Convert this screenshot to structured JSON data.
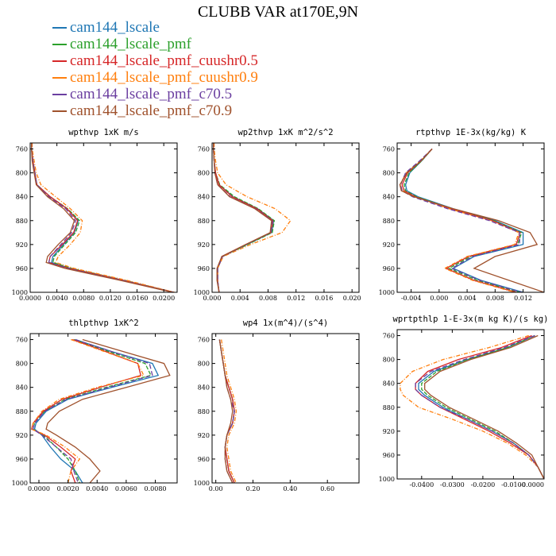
{
  "title": "CLUBB VAR at170E,9N",
  "colors": {
    "cam144_lscale": "#1f77b4",
    "cam144_lscale_pmf": "#2ca02c",
    "cam144_lscale_pmf_cuushr0.5": "#d62728",
    "cam144_lscale_pmf_cuushr0.9": "#ff7f0e",
    "cam144_lscale_pmf_c70.5": "#6b3fa0",
    "cam144_lscale_pmf_c70.9": "#a0522d"
  },
  "legend": [
    "cam144_lscale",
    "cam144_lscale_pmf",
    "cam144_lscale_pmf_cuushr0.5",
    "cam144_lscale_pmf_cuushr0.9",
    "cam144_lscale_pmf_c70.5",
    "cam144_lscale_pmf_c70.9"
  ],
  "chart_data": [
    {
      "type": "line",
      "title": "wpthvp  1xK m/s",
      "xlim": [
        0,
        0.022
      ],
      "ylim": [
        750,
        1000
      ],
      "xticks": [
        "0.0000",
        "0.0040",
        "0.0080",
        "0.0120",
        "0.0160",
        "0.0200"
      ],
      "xtick_values": [
        0,
        0.004,
        0.008,
        0.012,
        0.016,
        0.02
      ],
      "yticks": [
        "760",
        "800",
        "840",
        "880",
        "920",
        "960",
        "1000"
      ],
      "ytick_values": [
        760,
        800,
        840,
        880,
        920,
        960,
        1000
      ],
      "y": [
        750,
        760,
        780,
        800,
        820,
        840,
        860,
        880,
        900,
        920,
        940,
        950,
        960,
        980,
        1000
      ],
      "series": [
        {
          "name": "cam144_lscale",
          "values": [
            0.0002,
            0.0002,
            0.0004,
            0.0007,
            0.001,
            0.003,
            0.0055,
            0.0072,
            0.0066,
            0.005,
            0.0034,
            0.0032,
            0.006,
            0.014,
            0.0215
          ]
        },
        {
          "name": "cam144_lscale_pmf",
          "values": [
            0.0002,
            0.0002,
            0.0004,
            0.0007,
            0.001,
            0.003,
            0.0056,
            0.0074,
            0.0068,
            0.0052,
            0.0036,
            0.0034,
            0.0062,
            0.0142,
            0.0215
          ]
        },
        {
          "name": "cam144_lscale_pmf_cuushr0.5",
          "values": [
            0.0002,
            0.0002,
            0.0004,
            0.0007,
            0.001,
            0.003,
            0.0055,
            0.0071,
            0.0065,
            0.0048,
            0.003,
            0.0028,
            0.0058,
            0.014,
            0.0215
          ]
        },
        {
          "name": "cam144_lscale_pmf_cuushr0.9",
          "values": [
            0.0003,
            0.0003,
            0.0006,
            0.0009,
            0.0016,
            0.0038,
            0.006,
            0.0078,
            0.0075,
            0.006,
            0.0042,
            0.0038,
            0.0066,
            0.0145,
            0.0216
          ]
        },
        {
          "name": "cam144_lscale_pmf_c70.5",
          "values": [
            0.0002,
            0.0002,
            0.0004,
            0.0007,
            0.001,
            0.0028,
            0.0053,
            0.0068,
            0.0062,
            0.0046,
            0.003,
            0.0028,
            0.0056,
            0.0138,
            0.0214
          ]
        },
        {
          "name": "cam144_lscale_pmf_c70.9",
          "values": [
            0.0002,
            0.0002,
            0.0003,
            0.0006,
            0.0009,
            0.0026,
            0.005,
            0.0066,
            0.006,
            0.0042,
            0.0026,
            0.0024,
            0.0052,
            0.0135,
            0.0213
          ]
        }
      ]
    },
    {
      "type": "line",
      "title": "wp2thvp  1xK m^2/s^2",
      "xlim": [
        0,
        0.021
      ],
      "ylim": [
        750,
        1000
      ],
      "xticks": [
        "0.000",
        "0.004",
        "0.008",
        "0.012",
        "0.016",
        "0.020"
      ],
      "xtick_values": [
        0,
        0.004,
        0.008,
        0.012,
        0.016,
        0.02
      ],
      "yticks": [
        "760",
        "800",
        "840",
        "880",
        "920",
        "960",
        "1000"
      ],
      "ytick_values": [
        760,
        800,
        840,
        880,
        920,
        960,
        1000
      ],
      "y": [
        750,
        760,
        780,
        800,
        820,
        840,
        860,
        880,
        900,
        920,
        940,
        960,
        980,
        1000
      ],
      "series": [
        {
          "name": "cam144_lscale",
          "values": [
            0.0002,
            0.0002,
            0.0003,
            0.0005,
            0.001,
            0.003,
            0.0065,
            0.0088,
            0.0085,
            0.005,
            0.0015,
            0.0008,
            0.0008,
            0.001
          ]
        },
        {
          "name": "cam144_lscale_pmf",
          "values": [
            0.0002,
            0.0002,
            0.0003,
            0.0005,
            0.0011,
            0.0032,
            0.0066,
            0.0089,
            0.0086,
            0.0051,
            0.0015,
            0.0008,
            0.0008,
            0.001
          ]
        },
        {
          "name": "cam144_lscale_pmf_cuushr0.5",
          "values": [
            0.0002,
            0.0002,
            0.0003,
            0.0005,
            0.001,
            0.0029,
            0.0064,
            0.0087,
            0.0084,
            0.0048,
            0.0014,
            0.0008,
            0.0008,
            0.001
          ]
        },
        {
          "name": "cam144_lscale_pmf_cuushr0.9",
          "values": [
            0.0003,
            0.0003,
            0.0005,
            0.0008,
            0.002,
            0.005,
            0.009,
            0.0112,
            0.01,
            0.0055,
            0.0016,
            0.0008,
            0.0008,
            0.001
          ]
        },
        {
          "name": "cam144_lscale_pmf_c70.5",
          "values": [
            0.0002,
            0.0002,
            0.0003,
            0.0004,
            0.0008,
            0.0026,
            0.0062,
            0.0086,
            0.0084,
            0.0049,
            0.0015,
            0.0008,
            0.0008,
            0.001
          ]
        },
        {
          "name": "cam144_lscale_pmf_c70.9",
          "values": [
            0.0002,
            0.0002,
            0.0003,
            0.0004,
            0.0008,
            0.0025,
            0.0061,
            0.0085,
            0.0083,
            0.0048,
            0.0014,
            0.0007,
            0.0007,
            0.001
          ]
        }
      ]
    },
    {
      "type": "line",
      "title": "rtpthvp  1E-3x(kg/kg) K",
      "xlim": [
        -0.006,
        0.015
      ],
      "ylim": [
        750,
        1000
      ],
      "xticks": [
        "-0.004",
        "0.000",
        "0.004",
        "0.008",
        "0.012"
      ],
      "xtick_values": [
        -0.004,
        0.0,
        0.004,
        0.008,
        0.012
      ],
      "yticks": [
        "760",
        "800",
        "840",
        "880",
        "920",
        "960",
        "1000"
      ],
      "ytick_values": [
        760,
        800,
        840,
        880,
        920,
        960,
        1000
      ],
      "y": [
        760,
        780,
        800,
        820,
        830,
        840,
        860,
        880,
        900,
        920,
        940,
        960,
        980,
        1000
      ],
      "series": [
        {
          "name": "cam144_lscale",
          "values": [
            -0.001,
            -0.0025,
            -0.0042,
            -0.0048,
            -0.0046,
            -0.003,
            0.002,
            0.008,
            0.012,
            0.012,
            0.005,
            0.002,
            0.006,
            0.012
          ]
        },
        {
          "name": "cam144_lscale_pmf",
          "values": [
            -0.001,
            -0.0025,
            -0.0043,
            -0.005,
            -0.0048,
            -0.0032,
            0.0018,
            0.0078,
            0.0118,
            0.0112,
            0.0045,
            0.0014,
            0.0055,
            0.0115
          ]
        },
        {
          "name": "cam144_lscale_pmf_cuushr0.5",
          "values": [
            -0.001,
            -0.0026,
            -0.0045,
            -0.0053,
            -0.005,
            -0.0034,
            0.0016,
            0.0076,
            0.0116,
            0.011,
            0.0042,
            0.001,
            0.005,
            0.011
          ]
        },
        {
          "name": "cam144_lscale_pmf_cuushr0.9",
          "values": [
            -0.001,
            -0.0027,
            -0.0047,
            -0.0056,
            -0.0052,
            -0.0036,
            0.0014,
            0.0074,
            0.0114,
            0.0108,
            0.004,
            0.0008,
            0.0048,
            0.0108
          ]
        },
        {
          "name": "cam144_lscale_pmf_c70.5",
          "values": [
            -0.001,
            -0.0028,
            -0.0048,
            -0.0055,
            -0.0053,
            -0.0038,
            0.0012,
            0.0072,
            0.0115,
            0.0115,
            0.0048,
            0.0018,
            0.0058,
            0.0118
          ]
        },
        {
          "name": "cam144_lscale_pmf_c70.9",
          "values": [
            -0.001,
            -0.0026,
            -0.0046,
            -0.0056,
            -0.0054,
            -0.0036,
            0.002,
            0.0085,
            0.013,
            0.014,
            0.008,
            0.005,
            0.01,
            0.015
          ]
        }
      ]
    },
    {
      "type": "line",
      "title": "thlpthvp  1xK^2",
      "xlim": [
        -0.0006,
        0.0095
      ],
      "ylim": [
        750,
        1000
      ],
      "xticks": [
        "0.0000",
        "0.0020",
        "0.0040",
        "0.0060",
        "0.0080"
      ],
      "xtick_values": [
        0,
        0.002,
        0.004,
        0.006,
        0.008
      ],
      "yticks": [
        "760",
        "800",
        "840",
        "880",
        "920",
        "960",
        "1000"
      ],
      "ytick_values": [
        760,
        800,
        840,
        880,
        920,
        960,
        1000
      ],
      "y": [
        760,
        780,
        800,
        820,
        840,
        860,
        880,
        900,
        910,
        920,
        940,
        960,
        980,
        1000
      ],
      "series": [
        {
          "name": "cam144_lscale",
          "values": [
            0.0025,
            0.005,
            0.0078,
            0.0082,
            0.005,
            0.002,
            0.0005,
            -0.0002,
            -0.0003,
            0.0002,
            0.0008,
            0.0015,
            0.0025,
            0.003
          ]
        },
        {
          "name": "cam144_lscale_pmf",
          "values": [
            0.0024,
            0.0048,
            0.0073,
            0.0077,
            0.0046,
            0.0018,
            0.0004,
            -0.0003,
            -0.0004,
            0.0003,
            0.0012,
            0.002,
            0.0025,
            0.0028
          ]
        },
        {
          "name": "cam144_lscale_pmf_cuushr0.5",
          "values": [
            0.0023,
            0.0046,
            0.0068,
            0.007,
            0.0042,
            0.0016,
            0.0003,
            -0.0004,
            -0.0005,
            0.0004,
            0.0015,
            0.0025,
            0.0022,
            0.0025
          ]
        },
        {
          "name": "cam144_lscale_pmf_cuushr0.9",
          "values": [
            0.0022,
            0.0045,
            0.0068,
            0.0072,
            0.004,
            0.0014,
            0.0002,
            -0.0004,
            -0.0005,
            0.0005,
            0.0018,
            0.0028,
            0.0022,
            0.002
          ]
        },
        {
          "name": "cam144_lscale_pmf_c70.5",
          "values": [
            0.0025,
            0.005,
            0.0076,
            0.0078,
            0.0048,
            0.0019,
            0.0004,
            -0.0003,
            -0.0004,
            0.0002,
            0.0012,
            0.0022,
            0.0024,
            0.0027
          ]
        },
        {
          "name": "cam144_lscale_pmf_c70.9",
          "values": [
            0.003,
            0.0058,
            0.0086,
            0.009,
            0.006,
            0.003,
            0.0014,
            0.0006,
            0.0005,
            0.0012,
            0.0025,
            0.0035,
            0.0042,
            0.0035
          ]
        }
      ]
    },
    {
      "type": "line",
      "title": "wp4  1x(m^4)/(s^4)",
      "xlim": [
        -0.02,
        0.77
      ],
      "ylim": [
        750,
        1000
      ],
      "xticks": [
        "0.00",
        "0.20",
        "0.40",
        "0.60"
      ],
      "xtick_values": [
        0,
        0.2,
        0.4,
        0.6
      ],
      "yticks": [
        "760",
        "800",
        "840",
        "880",
        "920",
        "960",
        "1000"
      ],
      "ytick_values": [
        760,
        800,
        840,
        880,
        920,
        960,
        1000
      ],
      "y": [
        760,
        780,
        800,
        820,
        840,
        860,
        880,
        900,
        920,
        940,
        960,
        980,
        1000
      ],
      "series": [
        {
          "name": "cam144_lscale",
          "values": [
            0.02,
            0.03,
            0.04,
            0.05,
            0.07,
            0.09,
            0.1,
            0.09,
            0.06,
            0.05,
            0.06,
            0.07,
            0.1
          ]
        },
        {
          "name": "cam144_lscale_pmf",
          "values": [
            0.02,
            0.03,
            0.04,
            0.05,
            0.07,
            0.09,
            0.1,
            0.09,
            0.06,
            0.05,
            0.06,
            0.07,
            0.1
          ]
        },
        {
          "name": "cam144_lscale_pmf_cuushr0.5",
          "values": [
            0.02,
            0.03,
            0.04,
            0.05,
            0.07,
            0.09,
            0.1,
            0.09,
            0.06,
            0.05,
            0.06,
            0.07,
            0.1
          ]
        },
        {
          "name": "cam144_lscale_pmf_cuushr0.9",
          "values": [
            0.03,
            0.04,
            0.05,
            0.06,
            0.08,
            0.1,
            0.11,
            0.1,
            0.07,
            0.06,
            0.07,
            0.08,
            0.11
          ]
        },
        {
          "name": "cam144_lscale_pmf_c70.5",
          "values": [
            0.02,
            0.03,
            0.04,
            0.05,
            0.06,
            0.08,
            0.1,
            0.09,
            0.06,
            0.05,
            0.05,
            0.06,
            0.09
          ]
        },
        {
          "name": "cam144_lscale_pmf_c70.9",
          "values": [
            0.02,
            0.03,
            0.04,
            0.05,
            0.06,
            0.08,
            0.09,
            0.08,
            0.06,
            0.05,
            0.05,
            0.06,
            0.09
          ]
        }
      ]
    },
    {
      "type": "line",
      "title": "wprtpthlp  1-E-3x(m kg K)/(s kg)",
      "xlim": [
        -0.048,
        0.0
      ],
      "ylim": [
        750,
        1000
      ],
      "xticks": [
        "-0.0400",
        "-0.0300",
        "-0.0200",
        "-0.0100",
        "-0.0000"
      ],
      "xtick_values": [
        -0.04,
        -0.03,
        -0.02,
        -0.01,
        0.0
      ],
      "yticks": [
        "760",
        "800",
        "840",
        "880",
        "920",
        "960",
        "1000"
      ],
      "ytick_values": [
        760,
        800,
        840,
        880,
        920,
        960,
        1000
      ],
      "y": [
        760,
        780,
        800,
        820,
        840,
        850,
        860,
        880,
        900,
        920,
        940,
        960,
        980,
        1000
      ],
      "series": [
        {
          "name": "cam144_lscale",
          "values": [
            -0.003,
            -0.012,
            -0.025,
            -0.036,
            -0.041,
            -0.041,
            -0.039,
            -0.033,
            -0.025,
            -0.017,
            -0.01,
            -0.005,
            -0.002,
            0.0
          ]
        },
        {
          "name": "cam144_lscale_pmf",
          "values": [
            -0.003,
            -0.012,
            -0.025,
            -0.035,
            -0.04,
            -0.04,
            -0.038,
            -0.032,
            -0.024,
            -0.016,
            -0.01,
            -0.005,
            -0.002,
            0.0
          ]
        },
        {
          "name": "cam144_lscale_pmf_cuushr0.5",
          "values": [
            -0.004,
            -0.014,
            -0.028,
            -0.038,
            -0.042,
            -0.042,
            -0.04,
            -0.034,
            -0.026,
            -0.018,
            -0.011,
            -0.005,
            -0.002,
            0.0
          ]
        },
        {
          "name": "cam144_lscale_pmf_cuushr0.9",
          "values": [
            -0.005,
            -0.018,
            -0.033,
            -0.043,
            -0.047,
            -0.047,
            -0.046,
            -0.041,
            -0.03,
            -0.02,
            -0.012,
            -0.006,
            -0.002,
            0.0
          ]
        },
        {
          "name": "cam144_lscale_pmf_c70.5",
          "values": [
            -0.003,
            -0.013,
            -0.026,
            -0.037,
            -0.042,
            -0.042,
            -0.04,
            -0.034,
            -0.025,
            -0.017,
            -0.01,
            -0.005,
            -0.002,
            0.0
          ]
        },
        {
          "name": "cam144_lscale_pmf_c70.9",
          "values": [
            -0.002,
            -0.011,
            -0.024,
            -0.034,
            -0.039,
            -0.039,
            -0.037,
            -0.031,
            -0.023,
            -0.015,
            -0.009,
            -0.004,
            -0.002,
            0.0
          ]
        }
      ]
    }
  ]
}
